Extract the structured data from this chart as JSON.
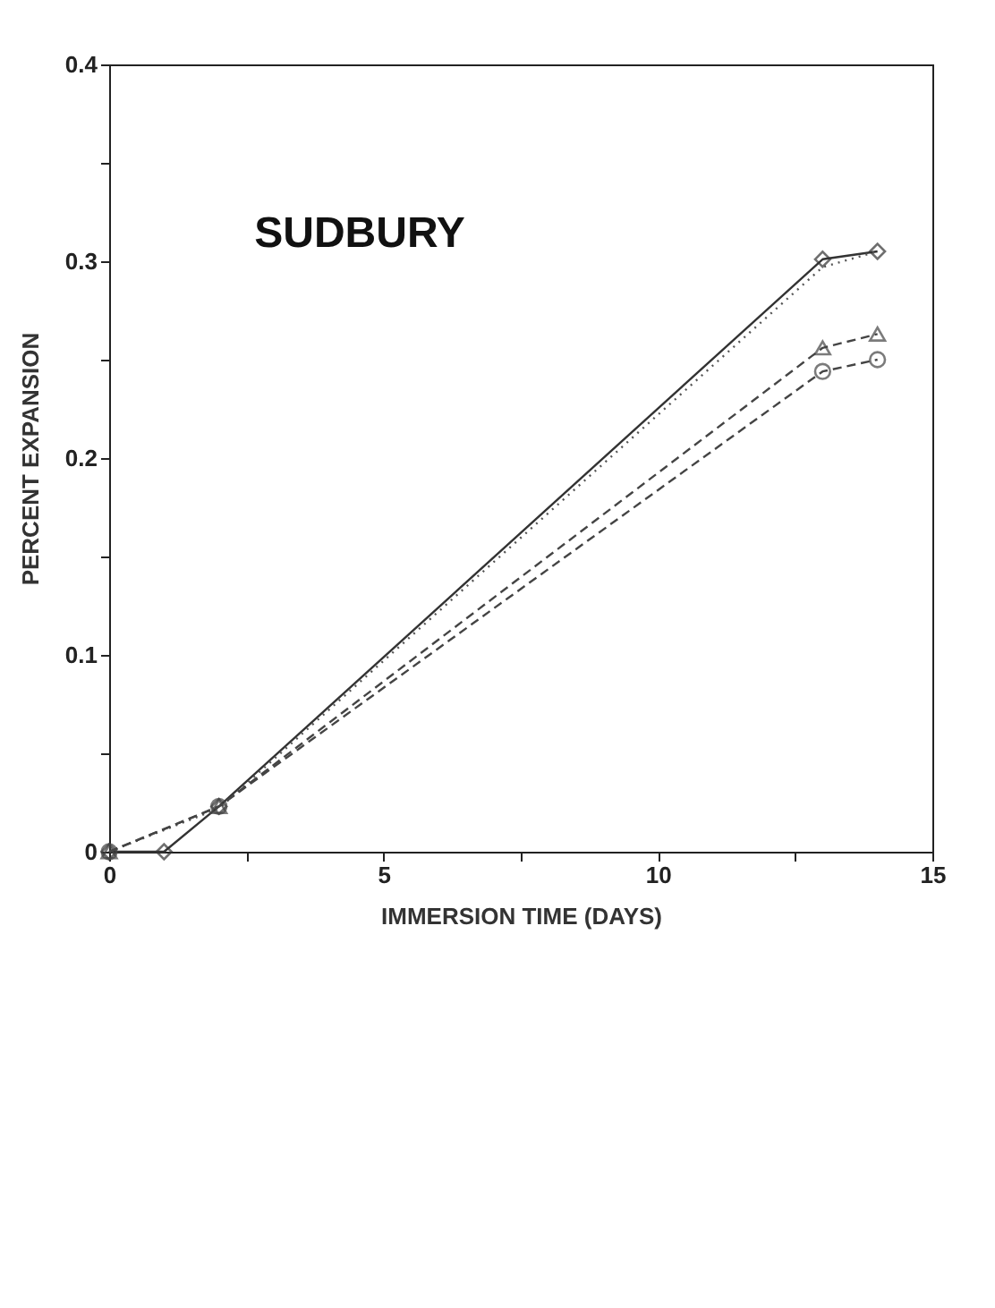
{
  "chart_data": {
    "type": "line",
    "xlabel": "IMMERSION TIME (DAYS)",
    "ylabel": "PERCENT EXPANSION",
    "annotations": [
      "SUDBURY"
    ],
    "x": [
      0,
      2,
      13,
      14
    ],
    "series": [
      {
        "color": "#333333",
        "line_style": "solid",
        "marker": "diamond",
        "x": [
          0,
          1,
          2,
          13,
          14
        ],
        "values": [
          0,
          0,
          0.023,
          0.301,
          0.305
        ]
      },
      {
        "color": "#555555",
        "line_style": "dotted",
        "marker": "none",
        "values": [
          0,
          0.022,
          0.297,
          0.305
        ]
      },
      {
        "color": "#444444",
        "line_style": "dashed",
        "marker": "triangle",
        "values": [
          0,
          0.023,
          0.256,
          0.263
        ]
      },
      {
        "color": "#444444",
        "line_style": "dashed",
        "marker": "circle",
        "values": [
          0,
          0.023,
          0.244,
          0.25
        ]
      }
    ],
    "xlim": [
      0,
      15
    ],
    "xticks": [
      0,
      {
        "value": 2.5,
        "label": null
      },
      5,
      {
        "value": 7.5,
        "label": null
      },
      10,
      {
        "value": 12.5,
        "label": null
      },
      15
    ],
    "ylim": [
      0,
      0.4
    ],
    "yticks": [
      0,
      {
        "value": 0.05,
        "label": null
      },
      0.1,
      {
        "value": 0.15,
        "label": null
      },
      0.2,
      {
        "value": 0.25,
        "label": null
      },
      0.3,
      {
        "value": 0.35,
        "label": null
      },
      0.4
    ],
    "grid": false
  }
}
